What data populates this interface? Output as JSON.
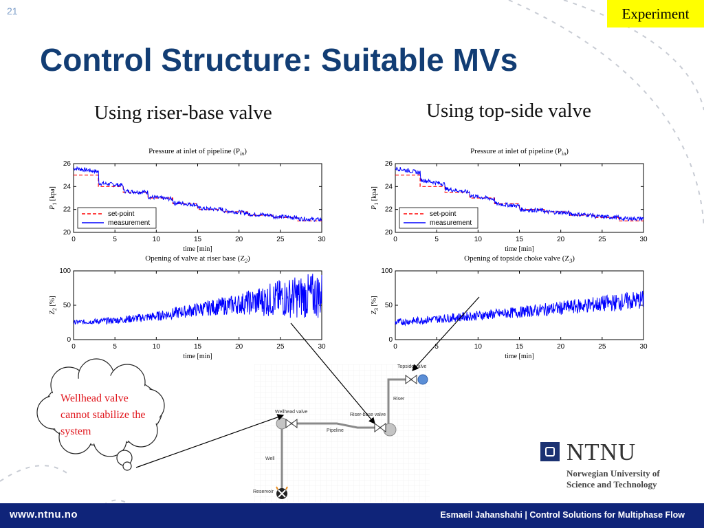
{
  "slide": {
    "number": "21",
    "badge": "Experiment",
    "title": "Control Structure: Suitable MVs"
  },
  "columns": {
    "left_heading": "Using riser-base valve",
    "right_heading": "Using top-side valve"
  },
  "charts": {
    "left_pressure": {
      "title": "Pressure at inlet of pipeline (P",
      "title_sub": "in",
      "title_end": ")",
      "xlabel": "time [min]",
      "ylabel": "P",
      "ylabel_sub": "1",
      "ylabel_unit": "[kpa]"
    },
    "left_valve": {
      "title": "Opening of valve at riser base  (Z",
      "title_sub": "2",
      "title_end": ")",
      "xlabel": "time [min]",
      "ylabel": "Z",
      "ylabel_sub": "2",
      "ylabel_unit": "[%]"
    },
    "right_pressure": {
      "title": "Pressure at inlet of pipeline (P",
      "title_sub": "in",
      "title_end": ")",
      "xlabel": "time [min]",
      "ylabel": "P",
      "ylabel_sub": "1",
      "ylabel_unit": "[kpa]"
    },
    "right_valve": {
      "title": "Opening of topside choke valve  (Z",
      "title_sub": "3",
      "title_end": ")",
      "xlabel": "time [min]",
      "ylabel": "Z",
      "ylabel_sub": "3",
      "ylabel_unit": "[%]"
    }
  },
  "legend": {
    "setpoint": "set-point",
    "measurement": "measurement"
  },
  "chart_data": [
    {
      "type": "line",
      "title": "Pressure at inlet of pipeline (Pin)",
      "xlabel": "time [min]",
      "ylabel": "P1 [kpa]",
      "xlim": [
        0,
        30
      ],
      "ylim": [
        20,
        26
      ],
      "xticks": [
        0,
        5,
        10,
        15,
        20,
        25,
        30
      ],
      "yticks": [
        20,
        22,
        24,
        26
      ],
      "legend_position": "bottom-left",
      "series": [
        {
          "name": "set-point",
          "style": "dashed",
          "color": "#ff0000",
          "x": [
            0,
            3,
            3,
            6,
            6,
            9,
            9,
            12,
            12,
            15,
            15,
            18,
            18,
            21,
            21,
            24,
            24,
            27,
            27,
            30
          ],
          "y": [
            25,
            25,
            24,
            24,
            23.5,
            23.5,
            23,
            23,
            22.5,
            22.5,
            22,
            22,
            21.8,
            21.8,
            21.5,
            21.5,
            21.3,
            21.3,
            21,
            21
          ]
        },
        {
          "name": "measurement",
          "style": "solid",
          "color": "#0000ff",
          "x": [
            0,
            3,
            3,
            6,
            6,
            9,
            9,
            12,
            12,
            15,
            15,
            18,
            18,
            21,
            21,
            24,
            24,
            27,
            27,
            30
          ],
          "y": [
            25.6,
            25.3,
            24.3,
            24.1,
            23.6,
            23.5,
            23.1,
            22.9,
            22.6,
            22.4,
            22.1,
            22.0,
            21.9,
            21.7,
            21.6,
            21.5,
            21.4,
            21.3,
            21.2,
            21.1
          ]
        }
      ]
    },
    {
      "type": "line",
      "title": "Opening of valve at riser base (Z2)",
      "xlabel": "time [min]",
      "ylabel": "Z2 [%]",
      "xlim": [
        0,
        30
      ],
      "ylim": [
        0,
        100
      ],
      "xticks": [
        0,
        5,
        10,
        15,
        20,
        25,
        30
      ],
      "yticks": [
        0,
        50,
        100
      ],
      "series": [
        {
          "color": "#0000ff",
          "x": [
            0,
            5,
            10,
            15,
            20,
            25,
            30
          ],
          "y": [
            25,
            28,
            34,
            44,
            52,
            60,
            65
          ],
          "oscillation_amplitude": [
            3,
            5,
            7,
            10,
            15,
            28,
            35
          ]
        }
      ]
    },
    {
      "type": "line",
      "title": "Pressure at inlet of pipeline (Pin)",
      "xlabel": "time [min]",
      "ylabel": "P1 [kpa]",
      "xlim": [
        0,
        30
      ],
      "ylim": [
        20,
        26
      ],
      "xticks": [
        0,
        5,
        10,
        15,
        20,
        25,
        30
      ],
      "yticks": [
        20,
        22,
        24,
        26
      ],
      "legend_position": "bottom-left",
      "series": [
        {
          "name": "set-point",
          "style": "dashed",
          "color": "#ff0000",
          "x": [
            0,
            3,
            3,
            6,
            6,
            9,
            9,
            12,
            12,
            15,
            15,
            18,
            18,
            21,
            21,
            24,
            24,
            27,
            27,
            30
          ],
          "y": [
            25,
            25,
            24,
            24,
            23.5,
            23.5,
            23,
            23,
            22.5,
            22.5,
            22,
            22,
            21.8,
            21.8,
            21.5,
            21.5,
            21.3,
            21.3,
            21,
            21
          ]
        },
        {
          "name": "measurement",
          "style": "solid",
          "color": "#0000ff",
          "x": [
            0,
            3,
            3,
            6,
            6,
            9,
            9,
            12,
            12,
            15,
            15,
            18,
            18,
            21,
            21,
            24,
            24,
            27,
            27,
            30
          ],
          "y": [
            25.6,
            25.2,
            24.6,
            24.2,
            23.8,
            23.5,
            23.2,
            22.9,
            22.5,
            22.3,
            22.0,
            21.9,
            21.8,
            21.7,
            21.6,
            21.5,
            21.4,
            21.3,
            21.2,
            21.2
          ]
        }
      ]
    },
    {
      "type": "line",
      "title": "Opening of topside choke valve (Z3)",
      "xlabel": "time [min]",
      "ylabel": "Z3 [%]",
      "xlim": [
        0,
        30
      ],
      "ylim": [
        0,
        100
      ],
      "xticks": [
        0,
        5,
        10,
        15,
        20,
        25,
        30
      ],
      "yticks": [
        0,
        50,
        100
      ],
      "series": [
        {
          "color": "#0000ff",
          "x": [
            0,
            5,
            10,
            15,
            20,
            25,
            30
          ],
          "y": [
            25,
            30,
            35,
            40,
            46,
            52,
            58
          ],
          "oscillation_amplitude": [
            5,
            6,
            7,
            8,
            10,
            12,
            14
          ]
        }
      ]
    }
  ],
  "diagram": {
    "topside_valve": "Topside valve",
    "riser": "Riser",
    "riser_base_valve": "Riser-base valve",
    "wellhead_valve": "Wellhead valve",
    "pipeline": "Pipeline",
    "well": "Well",
    "reservoir": "Reservoir"
  },
  "callout": {
    "text": "Wellhead valve cannot stabilize the system"
  },
  "logo": {
    "name": "NTNU",
    "line1": "Norwegian University of",
    "line2": "Science and Technology"
  },
  "footer": {
    "url": "www.ntnu.no",
    "credit": "Esmaeil Jahanshahi  |  Control Solutions for Multiphase Flow"
  },
  "colors": {
    "title": "#123d74",
    "footer": "#0f2479",
    "badge": "#ffff00",
    "measurement": "#0000ff",
    "setpoint": "#ff0000",
    "callout_text": "#e0141b"
  }
}
